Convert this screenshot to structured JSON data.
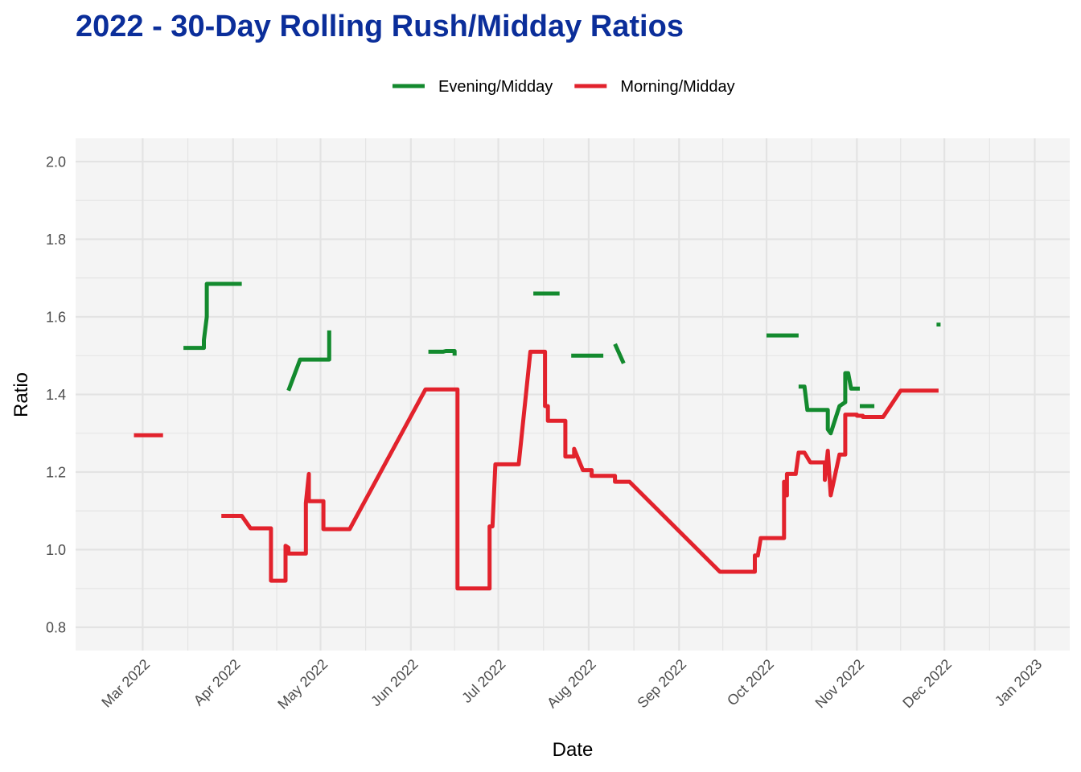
{
  "chart_data": {
    "type": "line",
    "title": "2022 - 30-Day Rolling Rush/Midday Ratios",
    "xlabel": "Date",
    "ylabel": "Ratio",
    "x_type": "date",
    "xlim": [
      "2022-02-06",
      "2023-01-13"
    ],
    "ylim": [
      0.74,
      2.06
    ],
    "x_ticks": [
      {
        "date": "2022-03-01",
        "label": "Mar 2022"
      },
      {
        "date": "2022-04-01",
        "label": "Apr 2022"
      },
      {
        "date": "2022-05-01",
        "label": "May 2022"
      },
      {
        "date": "2022-06-01",
        "label": "Jun 2022"
      },
      {
        "date": "2022-07-01",
        "label": "Jul 2022"
      },
      {
        "date": "2022-08-01",
        "label": "Aug 2022"
      },
      {
        "date": "2022-09-01",
        "label": "Sep 2022"
      },
      {
        "date": "2022-10-01",
        "label": "Oct 2022"
      },
      {
        "date": "2022-11-01",
        "label": "Nov 2022"
      },
      {
        "date": "2022-12-01",
        "label": "Dec 2022"
      },
      {
        "date": "2023-01-01",
        "label": "Jan 2023"
      }
    ],
    "y_ticks": [
      "0.8",
      "1.0",
      "1.2",
      "1.4",
      "1.6",
      "1.8",
      "2.0"
    ],
    "grid": true,
    "legend_position": "top",
    "panel_color": "#f4f4f4",
    "grid_color": "#e3e3e3",
    "series": [
      {
        "name": "Evening/Midday",
        "color": "#138a2e",
        "segments": [
          [
            [
              "2022-03-15",
              1.52
            ],
            [
              "2022-03-22",
              1.52
            ],
            [
              "2022-03-22",
              1.54
            ],
            [
              "2022-03-23",
              1.6
            ],
            [
              "2022-03-23",
              1.685
            ],
            [
              "2022-04-04",
              1.685
            ]
          ],
          [
            [
              "2022-04-20",
              1.41
            ],
            [
              "2022-04-24",
              1.49
            ],
            [
              "2022-05-04",
              1.49
            ],
            [
              "2022-05-04",
              1.565
            ]
          ],
          [
            [
              "2022-06-07",
              1.51
            ],
            [
              "2022-06-12",
              1.51
            ],
            [
              "2022-06-13",
              1.512
            ],
            [
              "2022-06-16",
              1.512
            ],
            [
              "2022-06-16",
              1.5
            ]
          ],
          [
            [
              "2022-07-13",
              1.66
            ],
            [
              "2022-07-22",
              1.66
            ]
          ],
          [
            [
              "2022-07-26",
              1.5
            ],
            [
              "2022-08-06",
              1.5
            ]
          ],
          [
            [
              "2022-08-10",
              1.53
            ],
            [
              "2022-08-13",
              1.48
            ]
          ],
          [
            [
              "2022-10-01",
              1.552
            ],
            [
              "2022-10-12",
              1.552
            ]
          ],
          [
            [
              "2022-10-12",
              1.42
            ],
            [
              "2022-10-14",
              1.42
            ],
            [
              "2022-10-15",
              1.36
            ],
            [
              "2022-10-22",
              1.36
            ],
            [
              "2022-10-22",
              1.31
            ],
            [
              "2022-10-23",
              1.3
            ],
            [
              "2022-10-26",
              1.37
            ],
            [
              "2022-10-28",
              1.38
            ],
            [
              "2022-10-28",
              1.455
            ],
            [
              "2022-10-29",
              1.455
            ],
            [
              "2022-10-30",
              1.415
            ],
            [
              "2022-11-02",
              1.415
            ]
          ],
          [
            [
              "2022-11-02",
              1.37
            ],
            [
              "2022-11-07",
              1.37
            ]
          ],
          [
            [
              "2022-11-29",
              1.585
            ],
            [
              "2022-11-29",
              1.575
            ]
          ]
        ]
      },
      {
        "name": "Morning/Midday",
        "color": "#e2222c",
        "segments": [
          [
            [
              "2022-02-26",
              1.295
            ],
            [
              "2022-03-08",
              1.295
            ]
          ],
          [
            [
              "2022-03-28",
              1.087
            ],
            [
              "2022-04-04",
              1.087
            ],
            [
              "2022-04-07",
              1.055
            ],
            [
              "2022-04-14",
              1.055
            ],
            [
              "2022-04-14",
              0.92
            ],
            [
              "2022-04-19",
              0.92
            ],
            [
              "2022-04-19",
              1.01
            ],
            [
              "2022-04-20",
              1.005
            ],
            [
              "2022-04-20",
              0.99
            ],
            [
              "2022-04-26",
              0.99
            ],
            [
              "2022-04-26",
              1.12
            ],
            [
              "2022-04-27",
              1.195
            ],
            [
              "2022-04-27",
              1.125
            ],
            [
              "2022-04-29",
              1.125
            ],
            [
              "2022-04-30",
              1.125
            ],
            [
              "2022-05-02",
              1.125
            ],
            [
              "2022-05-02",
              1.053
            ],
            [
              "2022-05-11",
              1.053
            ],
            [
              "2022-06-06",
              1.413
            ],
            [
              "2022-06-17",
              1.413
            ],
            [
              "2022-06-17",
              0.9
            ],
            [
              "2022-06-28",
              0.9
            ],
            [
              "2022-06-28",
              1.06
            ],
            [
              "2022-06-29",
              1.06
            ],
            [
              "2022-06-30",
              1.22
            ],
            [
              "2022-07-08",
              1.22
            ],
            [
              "2022-07-12",
              1.51
            ],
            [
              "2022-07-17",
              1.51
            ],
            [
              "2022-07-17",
              1.37
            ],
            [
              "2022-07-18",
              1.37
            ],
            [
              "2022-07-18",
              1.332
            ],
            [
              "2022-07-24",
              1.332
            ],
            [
              "2022-07-24",
              1.24
            ],
            [
              "2022-07-27",
              1.24
            ],
            [
              "2022-07-27",
              1.26
            ],
            [
              "2022-07-30",
              1.205
            ],
            [
              "2022-08-02",
              1.205
            ],
            [
              "2022-08-02",
              1.19
            ],
            [
              "2022-08-10",
              1.19
            ],
            [
              "2022-08-10",
              1.175
            ],
            [
              "2022-08-15",
              1.175
            ],
            [
              "2022-09-15",
              0.943
            ],
            [
              "2022-09-27",
              0.943
            ],
            [
              "2022-09-27",
              0.985
            ],
            [
              "2022-09-28",
              0.985
            ],
            [
              "2022-09-29",
              1.03
            ],
            [
              "2022-10-07",
              1.03
            ],
            [
              "2022-10-07",
              1.175
            ],
            [
              "2022-10-08",
              1.14
            ],
            [
              "2022-10-08",
              1.195
            ],
            [
              "2022-10-11",
              1.195
            ],
            [
              "2022-10-12",
              1.25
            ],
            [
              "2022-10-14",
              1.25
            ],
            [
              "2022-10-16",
              1.225
            ],
            [
              "2022-10-21",
              1.225
            ],
            [
              "2022-10-21",
              1.18
            ],
            [
              "2022-10-22",
              1.255
            ],
            [
              "2022-10-23",
              1.14
            ],
            [
              "2022-10-26",
              1.245
            ],
            [
              "2022-10-28",
              1.245
            ],
            [
              "2022-10-28",
              1.348
            ],
            [
              "2022-11-01",
              1.348
            ],
            [
              "2022-11-01",
              1.345
            ],
            [
              "2022-11-03",
              1.345
            ],
            [
              "2022-11-03",
              1.342
            ],
            [
              "2022-11-10",
              1.342
            ],
            [
              "2022-11-16",
              1.41
            ],
            [
              "2022-11-29",
              1.41
            ]
          ]
        ]
      }
    ]
  }
}
